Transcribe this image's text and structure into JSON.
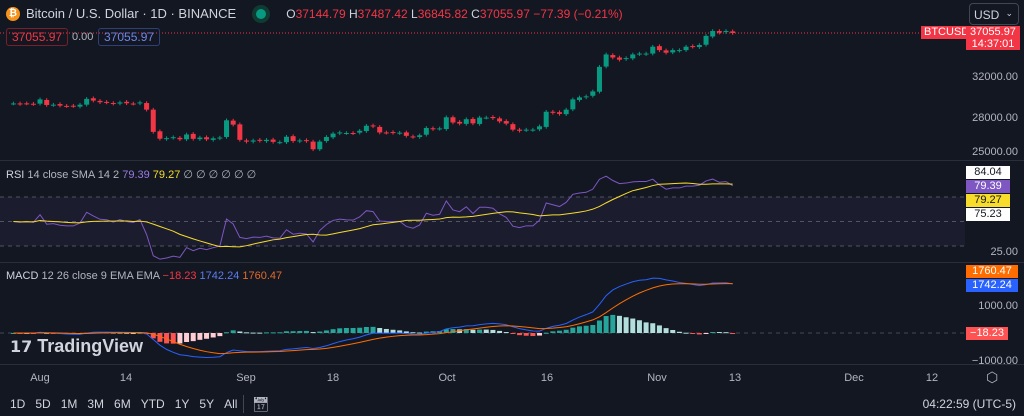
{
  "header": {
    "title": "Bitcoin / U.S. Dollar · 1D · BINANCE",
    "open_label": "O",
    "open": "37144.79",
    "high_label": "H",
    "high": "37487.42",
    "low_label": "L",
    "low": "36845.82",
    "close_label": "C",
    "close": "37055.97",
    "change": "−77.39 (−0.21%)",
    "bid": "37055.97",
    "spread": "0.00",
    "ask": "37055.97",
    "currency": "USD"
  },
  "price_axis": {
    "symbol_tag": "BTCUSD",
    "last_price": "37055.97",
    "countdown": "14:37:01",
    "ticks": [
      "32000.00",
      "28000.00",
      "25000.00"
    ]
  },
  "rsi": {
    "label": "RSI",
    "params": "14 close SMA 14 2",
    "value": "79.39",
    "sma": "79.27",
    "extra": "∅ ∅ ∅ ∅ ∅ ∅",
    "tags": [
      "84.04",
      "79.39",
      "79.27",
      "75.23"
    ],
    "tick": "25.00",
    "colors": {
      "rsi": "#7e57c2",
      "sma": "#f7dc2c"
    }
  },
  "macd": {
    "label": "MACD",
    "params": "12 26 close 9 EMA EMA",
    "hist": "−18.23",
    "macd": "1742.24",
    "signal": "1760.47",
    "ticks": [
      "1000.00",
      "−1000.00"
    ],
    "colors": {
      "macd": "#2962ff",
      "signal": "#ff6d00"
    }
  },
  "time_axis": [
    "Aug",
    "14",
    "Sep",
    "18",
    "Oct",
    "16",
    "Nov",
    "13",
    "Dec",
    "12"
  ],
  "toolbar": {
    "ranges": [
      "1D",
      "5D",
      "1M",
      "3M",
      "6M",
      "YTD",
      "1Y",
      "5Y",
      "All"
    ],
    "clock": "04:22:59 (UTC-5)"
  },
  "branding": "TradingView",
  "colors": {
    "up": "#089981",
    "down": "#f23645",
    "background": "#131722"
  },
  "chart_data": {
    "type": "candlestick",
    "scale": "log",
    "closes": [
      29300,
      29250,
      29300,
      29250,
      29700,
      29150,
      29180,
      29090,
      29050,
      29050,
      29180,
      29750,
      29580,
      29420,
      29400,
      29290,
      29400,
      29320,
      29280,
      29400,
      28700,
      26650,
      26050,
      26100,
      26180,
      26000,
      26420,
      26040,
      26150,
      26000,
      26080,
      26150,
      27700,
      27300,
      25950,
      25800,
      25900,
      25870,
      25950,
      25780,
      25750,
      26220,
      25850,
      25900,
      25850,
      25150,
      25800,
      26200,
      26500,
      26600,
      26550,
      26530,
      26750,
      27200,
      27150,
      26600,
      26580,
      26570,
      26580,
      26300,
      26200,
      26350,
      27000,
      26900,
      26960,
      27980,
      27500,
      27400,
      27800,
      27420,
      27950,
      27950,
      27900,
      27600,
      27400,
      26850,
      26750,
      26850,
      26850,
      27150,
      28500,
      28400,
      28300,
      28700,
      29700,
      29900,
      30000,
      30500,
      33100,
      34500,
      34150,
      33900,
      34080,
      34500,
      34600,
      34600,
      35400,
      35000,
      34700,
      35000,
      35000,
      35400,
      35400,
      35600,
      36700,
      37300,
      37100,
      37300,
      37055.97
    ]
  }
}
